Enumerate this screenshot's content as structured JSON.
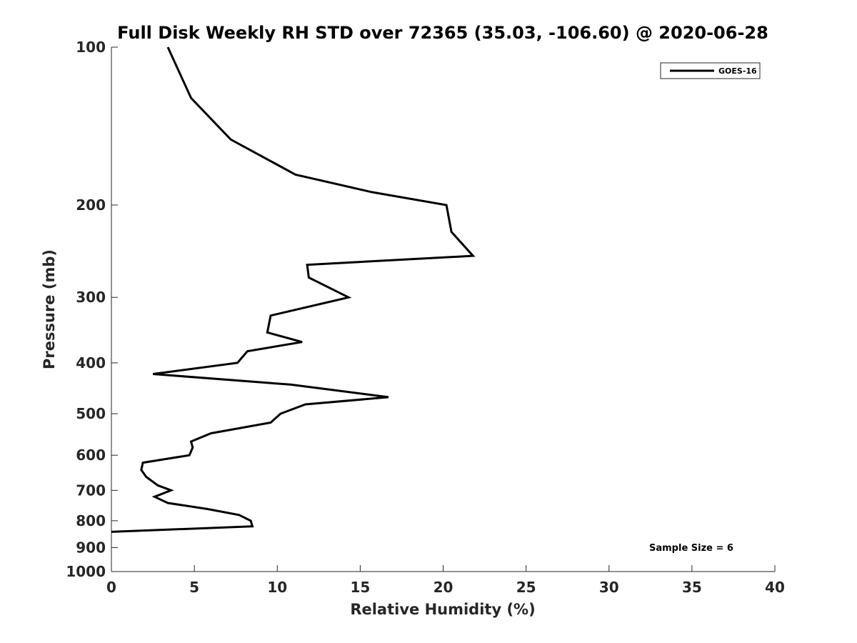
{
  "chart_data": {
    "type": "line",
    "title": "Full Disk Weekly RH STD over 72365 (35.03, -106.60) @ 2020-06-28",
    "xlabel": "Relative Humidity (%)",
    "ylabel": "Pressure (mb)",
    "xlim": [
      0,
      40
    ],
    "ylim": [
      100,
      1000
    ],
    "y_scale": "log",
    "y_reversed": true,
    "x_ticks": [
      0,
      5,
      10,
      15,
      20,
      25,
      30,
      35,
      40
    ],
    "y_ticks": [
      100,
      200,
      300,
      400,
      500,
      600,
      700,
      800,
      900,
      1000
    ],
    "grid": false,
    "legend_position": "top-right",
    "annotation": "Sample Size = 6",
    "series": [
      {
        "name": "GOES-16",
        "color": "#000000",
        "points": [
          {
            "x": 3.4,
            "p": 100
          },
          {
            "x": 4.8,
            "p": 125
          },
          {
            "x": 7.2,
            "p": 150
          },
          {
            "x": 11.1,
            "p": 175
          },
          {
            "x": 15.7,
            "p": 189
          },
          {
            "x": 20.2,
            "p": 200
          },
          {
            "x": 20.5,
            "p": 225
          },
          {
            "x": 21.8,
            "p": 250
          },
          {
            "x": 11.8,
            "p": 260
          },
          {
            "x": 11.9,
            "p": 275
          },
          {
            "x": 14.3,
            "p": 300
          },
          {
            "x": 9.6,
            "p": 325
          },
          {
            "x": 9.4,
            "p": 350
          },
          {
            "x": 11.5,
            "p": 365
          },
          {
            "x": 8.2,
            "p": 380
          },
          {
            "x": 7.6,
            "p": 400
          },
          {
            "x": 2.5,
            "p": 420
          },
          {
            "x": 10.8,
            "p": 440
          },
          {
            "x": 16.7,
            "p": 465
          },
          {
            "x": 11.7,
            "p": 480
          },
          {
            "x": 10.2,
            "p": 500
          },
          {
            "x": 9.6,
            "p": 520
          },
          {
            "x": 6.0,
            "p": 545
          },
          {
            "x": 4.8,
            "p": 565
          },
          {
            "x": 4.9,
            "p": 580
          },
          {
            "x": 4.7,
            "p": 600
          },
          {
            "x": 1.9,
            "p": 620
          },
          {
            "x": 1.8,
            "p": 640
          },
          {
            "x": 2.1,
            "p": 660
          },
          {
            "x": 2.8,
            "p": 685
          },
          {
            "x": 3.6,
            "p": 700
          },
          {
            "x": 2.6,
            "p": 720
          },
          {
            "x": 3.4,
            "p": 740
          },
          {
            "x": 5.8,
            "p": 760
          },
          {
            "x": 7.7,
            "p": 780
          },
          {
            "x": 8.4,
            "p": 800
          },
          {
            "x": 8.5,
            "p": 820
          },
          {
            "x": 0.0,
            "p": 840
          }
        ]
      }
    ]
  }
}
